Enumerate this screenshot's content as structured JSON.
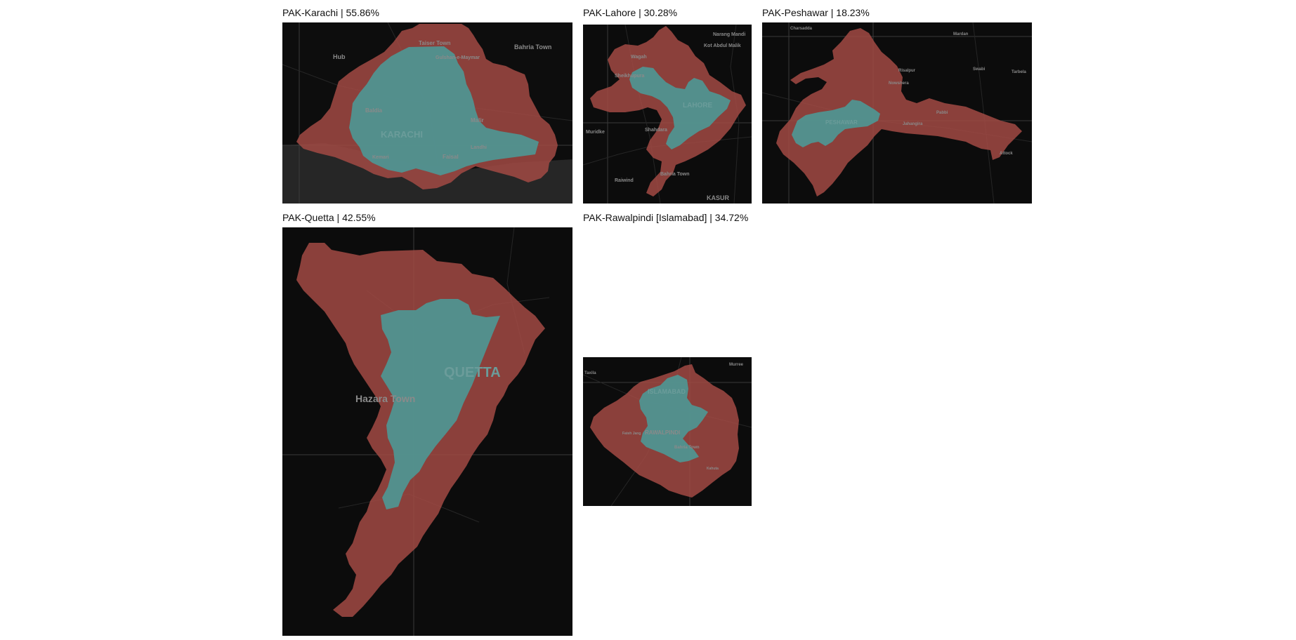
{
  "colors": {
    "outer": "#a24a44",
    "inner": "#4d9896",
    "map_bg": "#0b0b0b",
    "sea": "#262626"
  },
  "panels": [
    {
      "id": "karachi",
      "title": "PAK-Karachi | 55.86%",
      "labels": {
        "big": "KARACHI",
        "l1": "Hub",
        "l2": "Bahria Town",
        "l3": "Taiser Town",
        "l4": "Gulshan-e-Maymar",
        "l5": "Baldia",
        "l6": "Malir",
        "l7": "Faisal",
        "l8": "Landhi",
        "l9": "Kemari"
      }
    },
    {
      "id": "lahore",
      "title": "PAK-Lahore | 30.28%",
      "labels": {
        "big": "LAHORE",
        "l1": "Wagah",
        "l2": "Shahdara",
        "l3": "Sheikhupura",
        "l4": "Muridke",
        "l5": "Raiwind",
        "l6": "KASUR",
        "l7": "Narang Mandi",
        "l8": "Kot Abdul Malik",
        "l9": "Bahria Town"
      }
    },
    {
      "id": "peshawar",
      "title": "PAK-Peshawar | 18.23%",
      "labels": {
        "big": "PESHAWAR",
        "l1": "Charsadda",
        "l2": "Mardan",
        "l3": "Nowshera",
        "l4": "Risalpur",
        "l5": "Swabi",
        "l6": "Attock",
        "l7": "Tarbela",
        "l8": "Pabbi",
        "l9": "Jahangira"
      }
    },
    {
      "id": "quetta",
      "title": "PAK-Quetta | 42.55%",
      "labels": {
        "big": "QUETTA",
        "l1": "Hazara Town"
      }
    },
    {
      "id": "rawalpindi",
      "title": "PAK-Rawalpindi [Islamabad] | 34.72%",
      "labels": {
        "big": "ISLAMABAD",
        "l1": "RAWALPINDI",
        "l2": "Bahria Town",
        "l3": "Taxila",
        "l4": "Fateh Jang",
        "l5": "Kahuta",
        "l6": "Murree"
      }
    }
  ]
}
